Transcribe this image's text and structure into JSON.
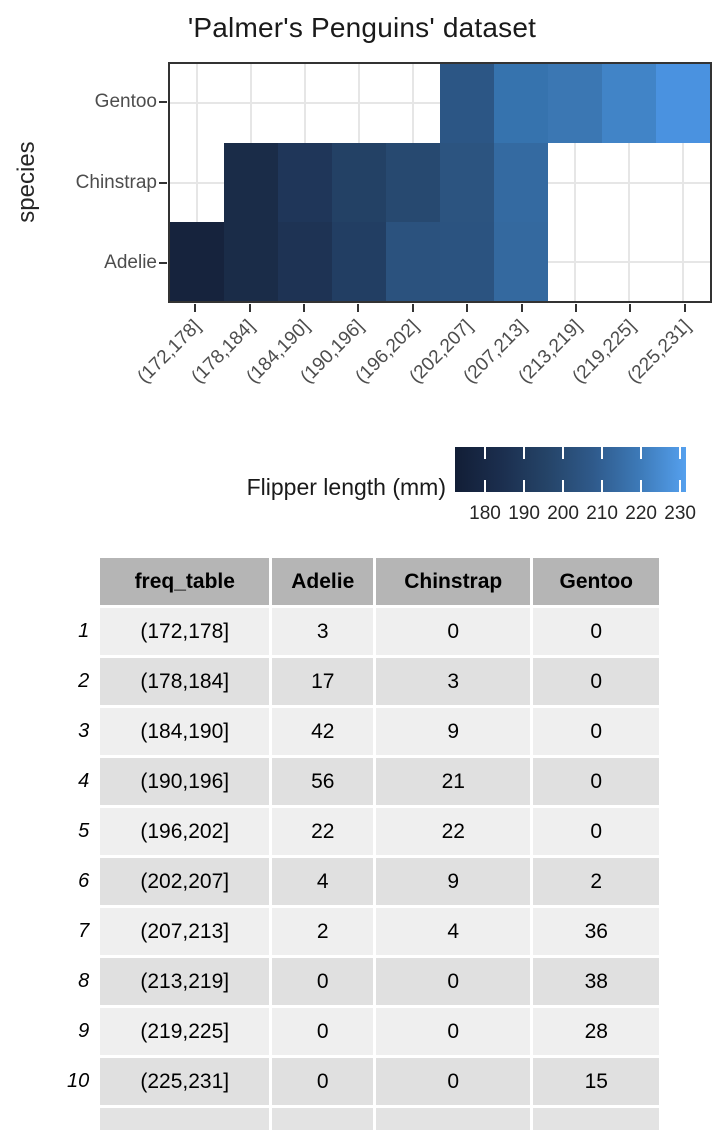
{
  "figure": {
    "title": "'Palmer's Penguins' dataset",
    "y_axis_label": "species",
    "legend_title": "Flipper length (mm)"
  },
  "chart_data": {
    "type": "heatmap",
    "title": "'Palmer's Penguins' dataset",
    "xlabel": "",
    "ylabel": "species",
    "x_categories": [
      "(172,178]",
      "(178,184]",
      "(184,190]",
      "(190,196]",
      "(196,202]",
      "(202,207]",
      "(207,213]",
      "(213,219]",
      "(219,225]",
      "(225,231]"
    ],
    "y_categories_top_to_bottom": [
      "Gentoo",
      "Chinstrap",
      "Adelie"
    ],
    "grid": "on",
    "legend_position": "bottom-right",
    "fill": {
      "label": "Flipper length (mm)",
      "domain": [
        172.3,
        231.5
      ],
      "ticks": [
        180,
        190,
        200,
        210,
        220,
        230
      ],
      "gradient_ends": [
        "#121e36",
        "#55a0ee"
      ]
    },
    "tiles": [
      {
        "species": "Adelie",
        "bin": "(172,178]",
        "color": "#16233d"
      },
      {
        "species": "Adelie",
        "bin": "(178,184]",
        "color": "#1a2c48"
      },
      {
        "species": "Adelie",
        "bin": "(184,190]",
        "color": "#1e3354"
      },
      {
        "species": "Adelie",
        "bin": "(190,196]",
        "color": "#223e63"
      },
      {
        "species": "Adelie",
        "bin": "(196,202]",
        "color": "#2b527e"
      },
      {
        "species": "Adelie",
        "bin": "(202,207]",
        "color": "#2b5380"
      },
      {
        "species": "Adelie",
        "bin": "(207,213]",
        "color": "#34699f"
      },
      {
        "species": "Chinstrap",
        "bin": "(178,184]",
        "color": "#1a2c48"
      },
      {
        "species": "Chinstrap",
        "bin": "(184,190]",
        "color": "#1f3659"
      },
      {
        "species": "Chinstrap",
        "bin": "(190,196]",
        "color": "#234165"
      },
      {
        "species": "Chinstrap",
        "bin": "(196,202]",
        "color": "#274970"
      },
      {
        "species": "Chinstrap",
        "bin": "(202,207]",
        "color": "#2c5480"
      },
      {
        "species": "Chinstrap",
        "bin": "(207,213]",
        "color": "#346aa1"
      },
      {
        "species": "Gentoo",
        "bin": "(202,207]",
        "color": "#2c5685"
      },
      {
        "species": "Gentoo",
        "bin": "(207,213]",
        "color": "#3673ae"
      },
      {
        "species": "Gentoo",
        "bin": "(213,219]",
        "color": "#3b77b3"
      },
      {
        "species": "Gentoo",
        "bin": "(219,225]",
        "color": "#4184c7"
      },
      {
        "species": "Gentoo",
        "bin": "(225,231]",
        "color": "#4a92e0"
      }
    ],
    "counts": {
      "categories": [
        "(172,178]",
        "(178,184]",
        "(184,190]",
        "(190,196]",
        "(196,202]",
        "(202,207]",
        "(207,213]",
        "(213,219]",
        "(219,225]",
        "(225,231]"
      ],
      "series": [
        {
          "name": "Adelie",
          "values": [
            3,
            17,
            42,
            56,
            22,
            4,
            2,
            0,
            0,
            0
          ]
        },
        {
          "name": "Chinstrap",
          "values": [
            0,
            3,
            9,
            21,
            22,
            9,
            4,
            0,
            0,
            0
          ]
        },
        {
          "name": "Gentoo",
          "values": [
            0,
            0,
            0,
            0,
            0,
            2,
            36,
            38,
            28,
            15
          ]
        }
      ]
    }
  },
  "table": {
    "columns": [
      "freq_table",
      "Adelie",
      "Chinstrap",
      "Gentoo"
    ],
    "row_numbers": [
      "1",
      "2",
      "3",
      "4",
      "5",
      "6",
      "7",
      "8",
      "9",
      "10"
    ],
    "rows": [
      [
        "(172,178]",
        "3",
        "0",
        "0"
      ],
      [
        "(178,184]",
        "17",
        "3",
        "0"
      ],
      [
        "(184,190]",
        "42",
        "9",
        "0"
      ],
      [
        "(190,196]",
        "56",
        "21",
        "0"
      ],
      [
        "(196,202]",
        "22",
        "22",
        "0"
      ],
      [
        "(202,207]",
        "4",
        "9",
        "2"
      ],
      [
        "(207,213]",
        "2",
        "4",
        "36"
      ],
      [
        "(213,219]",
        "0",
        "0",
        "38"
      ],
      [
        "(219,225]",
        "0",
        "0",
        "28"
      ],
      [
        "(225,231]",
        "0",
        "0",
        "15"
      ]
    ]
  },
  "colors": {
    "panel_border": "#333333",
    "gridline": "#e6e6e6",
    "axis_text": "#4d4d4d",
    "table_header_bg": "#b5b5b5",
    "table_row_odd_bg": "#efefef",
    "table_row_even_bg": "#e0e0e0"
  }
}
